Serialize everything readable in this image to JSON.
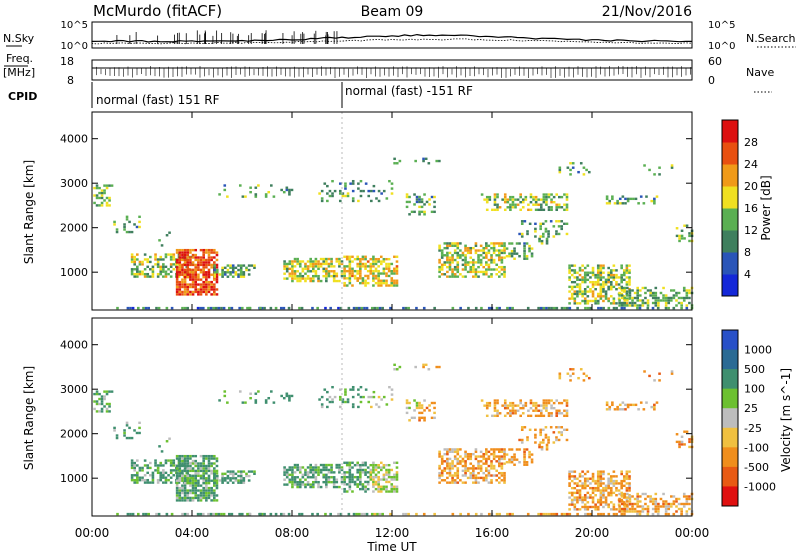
{
  "header": {
    "station": "McMurdo (fitACF)",
    "beam": "Beam 09",
    "date": "21/Nov/2016"
  },
  "top_panels": {
    "nsky_label": "N.Sky",
    "nsky_ticks": [
      "10^5",
      "10^0"
    ],
    "nsearch_label": "N.Search",
    "nsearch_ticks": [
      "10^5",
      "10^0"
    ],
    "freq_label_line1": "Freq.",
    "freq_label_line2": "[MHz]",
    "freq_ticks": [
      "18",
      "8"
    ],
    "nave_label": "Nave",
    "nave_ticks": [
      "60",
      "0"
    ],
    "cpid_label": "CPID",
    "cpid_segments": [
      "normal (fast) 151 RF",
      "normal (fast) -151 RF"
    ]
  },
  "chart_data": [
    {
      "type": "heatmap",
      "name": "power",
      "ylabel": "Slant Range [km]",
      "y_ticks": [
        "1000",
        "2000",
        "3000",
        "4000"
      ],
      "ylim": [
        150,
        4600
      ],
      "colorbar_label": "Power [dB]",
      "colorbar_ticks": [
        "4",
        "8",
        "12",
        "16",
        "20",
        "24",
        "28"
      ],
      "colorbar_colors": [
        "#1428d8",
        "#2a55b8",
        "#3f7f5e",
        "#5aaf52",
        "#f0e020",
        "#f09a18",
        "#e85010",
        "#dd1010"
      ]
    },
    {
      "type": "heatmap",
      "name": "velocity",
      "ylabel": "Slant Range [km]",
      "y_ticks": [
        "1000",
        "2000",
        "3000",
        "4000"
      ],
      "ylim": [
        150,
        4600
      ],
      "colorbar_label": "Velocity [m s^-1]",
      "colorbar_ticks": [
        "1000",
        "500",
        "100",
        "25",
        "-25",
        "-100",
        "-500",
        "-1000"
      ],
      "colorbar_colors": [
        "#2850c8",
        "#2a6a94",
        "#3f8f6f",
        "#6cc030",
        "#bdbdbd",
        "#f0c040",
        "#f08e1c",
        "#e85a14",
        "#e01010"
      ]
    }
  ],
  "x_axis": {
    "label": "Time UT",
    "ticks": [
      "00:00",
      "04:00",
      "08:00",
      "12:00",
      "16:00",
      "20:00",
      "00:00"
    ]
  }
}
